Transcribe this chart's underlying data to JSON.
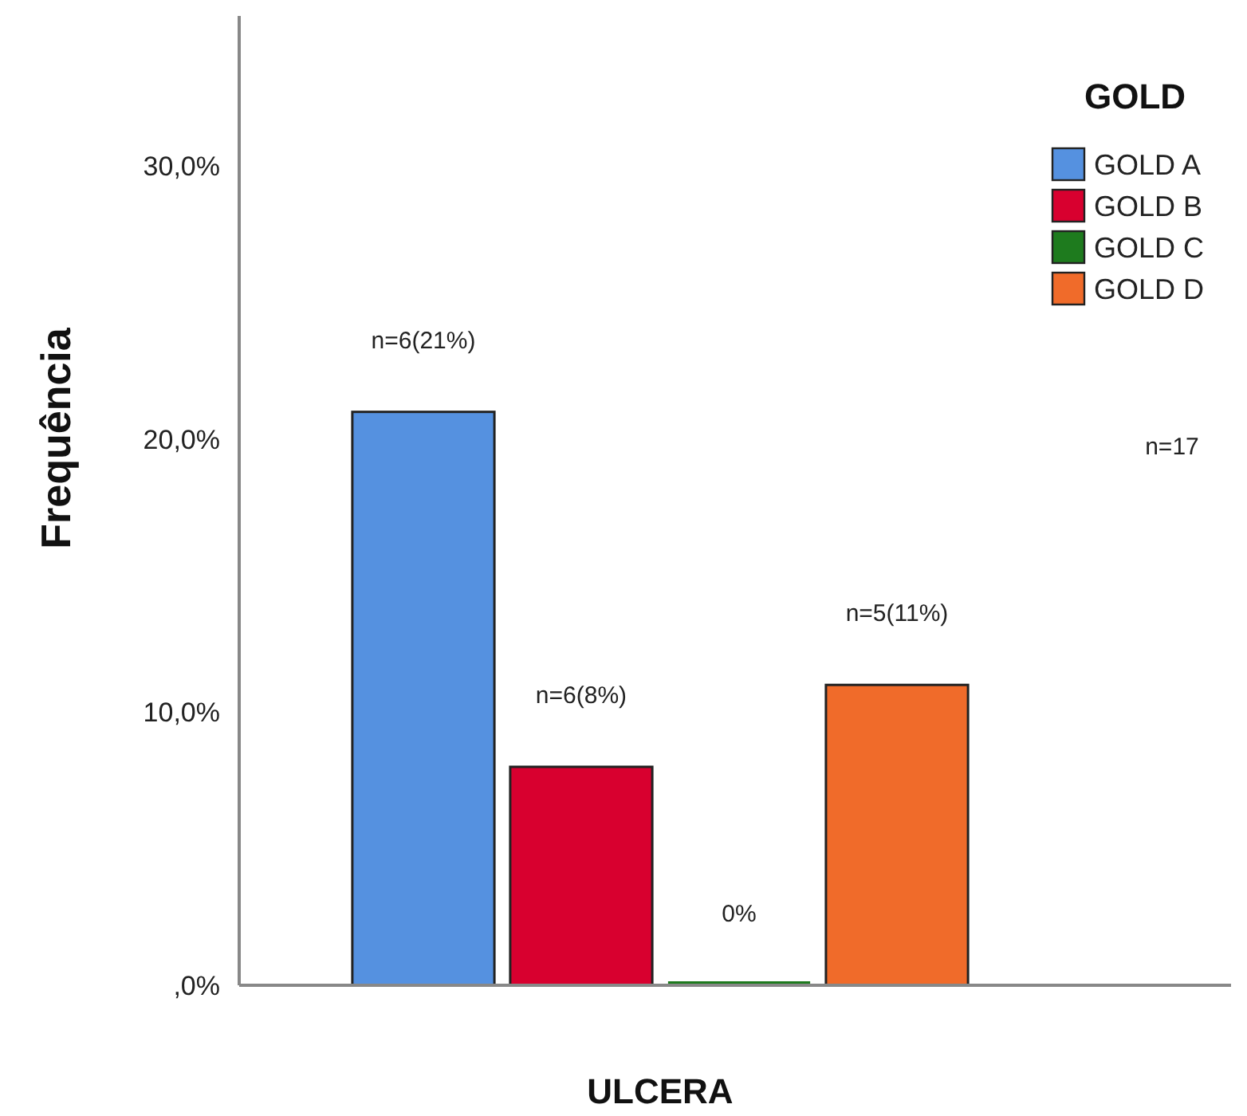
{
  "chart_data": {
    "type": "bar",
    "categories": [
      null
    ],
    "xlabel": "ULCERA",
    "ylabel": "Frequência",
    "legend_title": "GOLD",
    "legend": "top right",
    "series": [
      {
        "name": "GOLD A",
        "color": "#5591e0",
        "values": [
          21
        ],
        "value_labels": [
          "n=6(21%)"
        ]
      },
      {
        "name": "GOLD B",
        "color": "#d8002f",
        "values": [
          8
        ],
        "value_labels": [
          "n=6(8%)"
        ]
      },
      {
        "name": "GOLD C",
        "color": "#1e7b1e",
        "values": [
          0
        ],
        "value_labels": [
          "0%"
        ]
      },
      {
        "name": "GOLD D",
        "color": "#f06b2a",
        "values": [
          11
        ],
        "value_labels": [
          "n=5(11%)"
        ]
      }
    ],
    "ylim": [
      0,
      35.5
    ],
    "yticks": [
      {
        "value": 0,
        "label": ",0%"
      },
      {
        "value": 10,
        "label": "10,0%"
      },
      {
        "value": 20,
        "label": "20,0%"
      },
      {
        "value": 30,
        "label": "30,0%"
      }
    ],
    "annotations": [
      "n=17"
    ]
  }
}
